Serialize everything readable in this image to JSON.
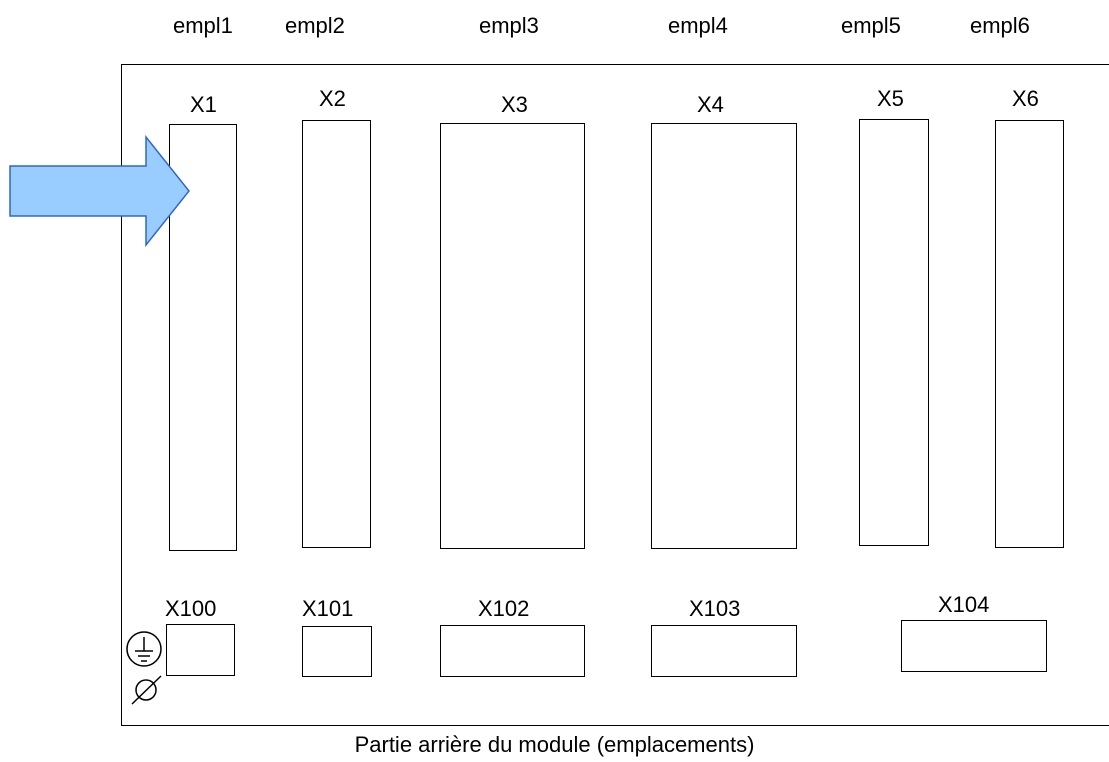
{
  "slots": {
    "s1": "empl1",
    "s2": "empl2",
    "s3": "empl3",
    "s4": "empl4",
    "s5": "empl5",
    "s6": "empl6"
  },
  "connectors_top": {
    "x1": "X1",
    "x2": "X2",
    "x3": "X3",
    "x4": "X4",
    "x5": "X5",
    "x6": "X6"
  },
  "connectors_bottom": {
    "x100": "X100",
    "x101": "X101",
    "x102": "X102",
    "x103": "X103",
    "x104": "X104"
  },
  "caption": "Partie arrière du module (emplacements)",
  "icons": {
    "ground": "ground-icon",
    "diameter": "diameter-icon",
    "arrow": "arrow-right-icon"
  },
  "colors": {
    "arrow_fill": "#99ccff",
    "arrow_stroke": "#3366cc"
  }
}
